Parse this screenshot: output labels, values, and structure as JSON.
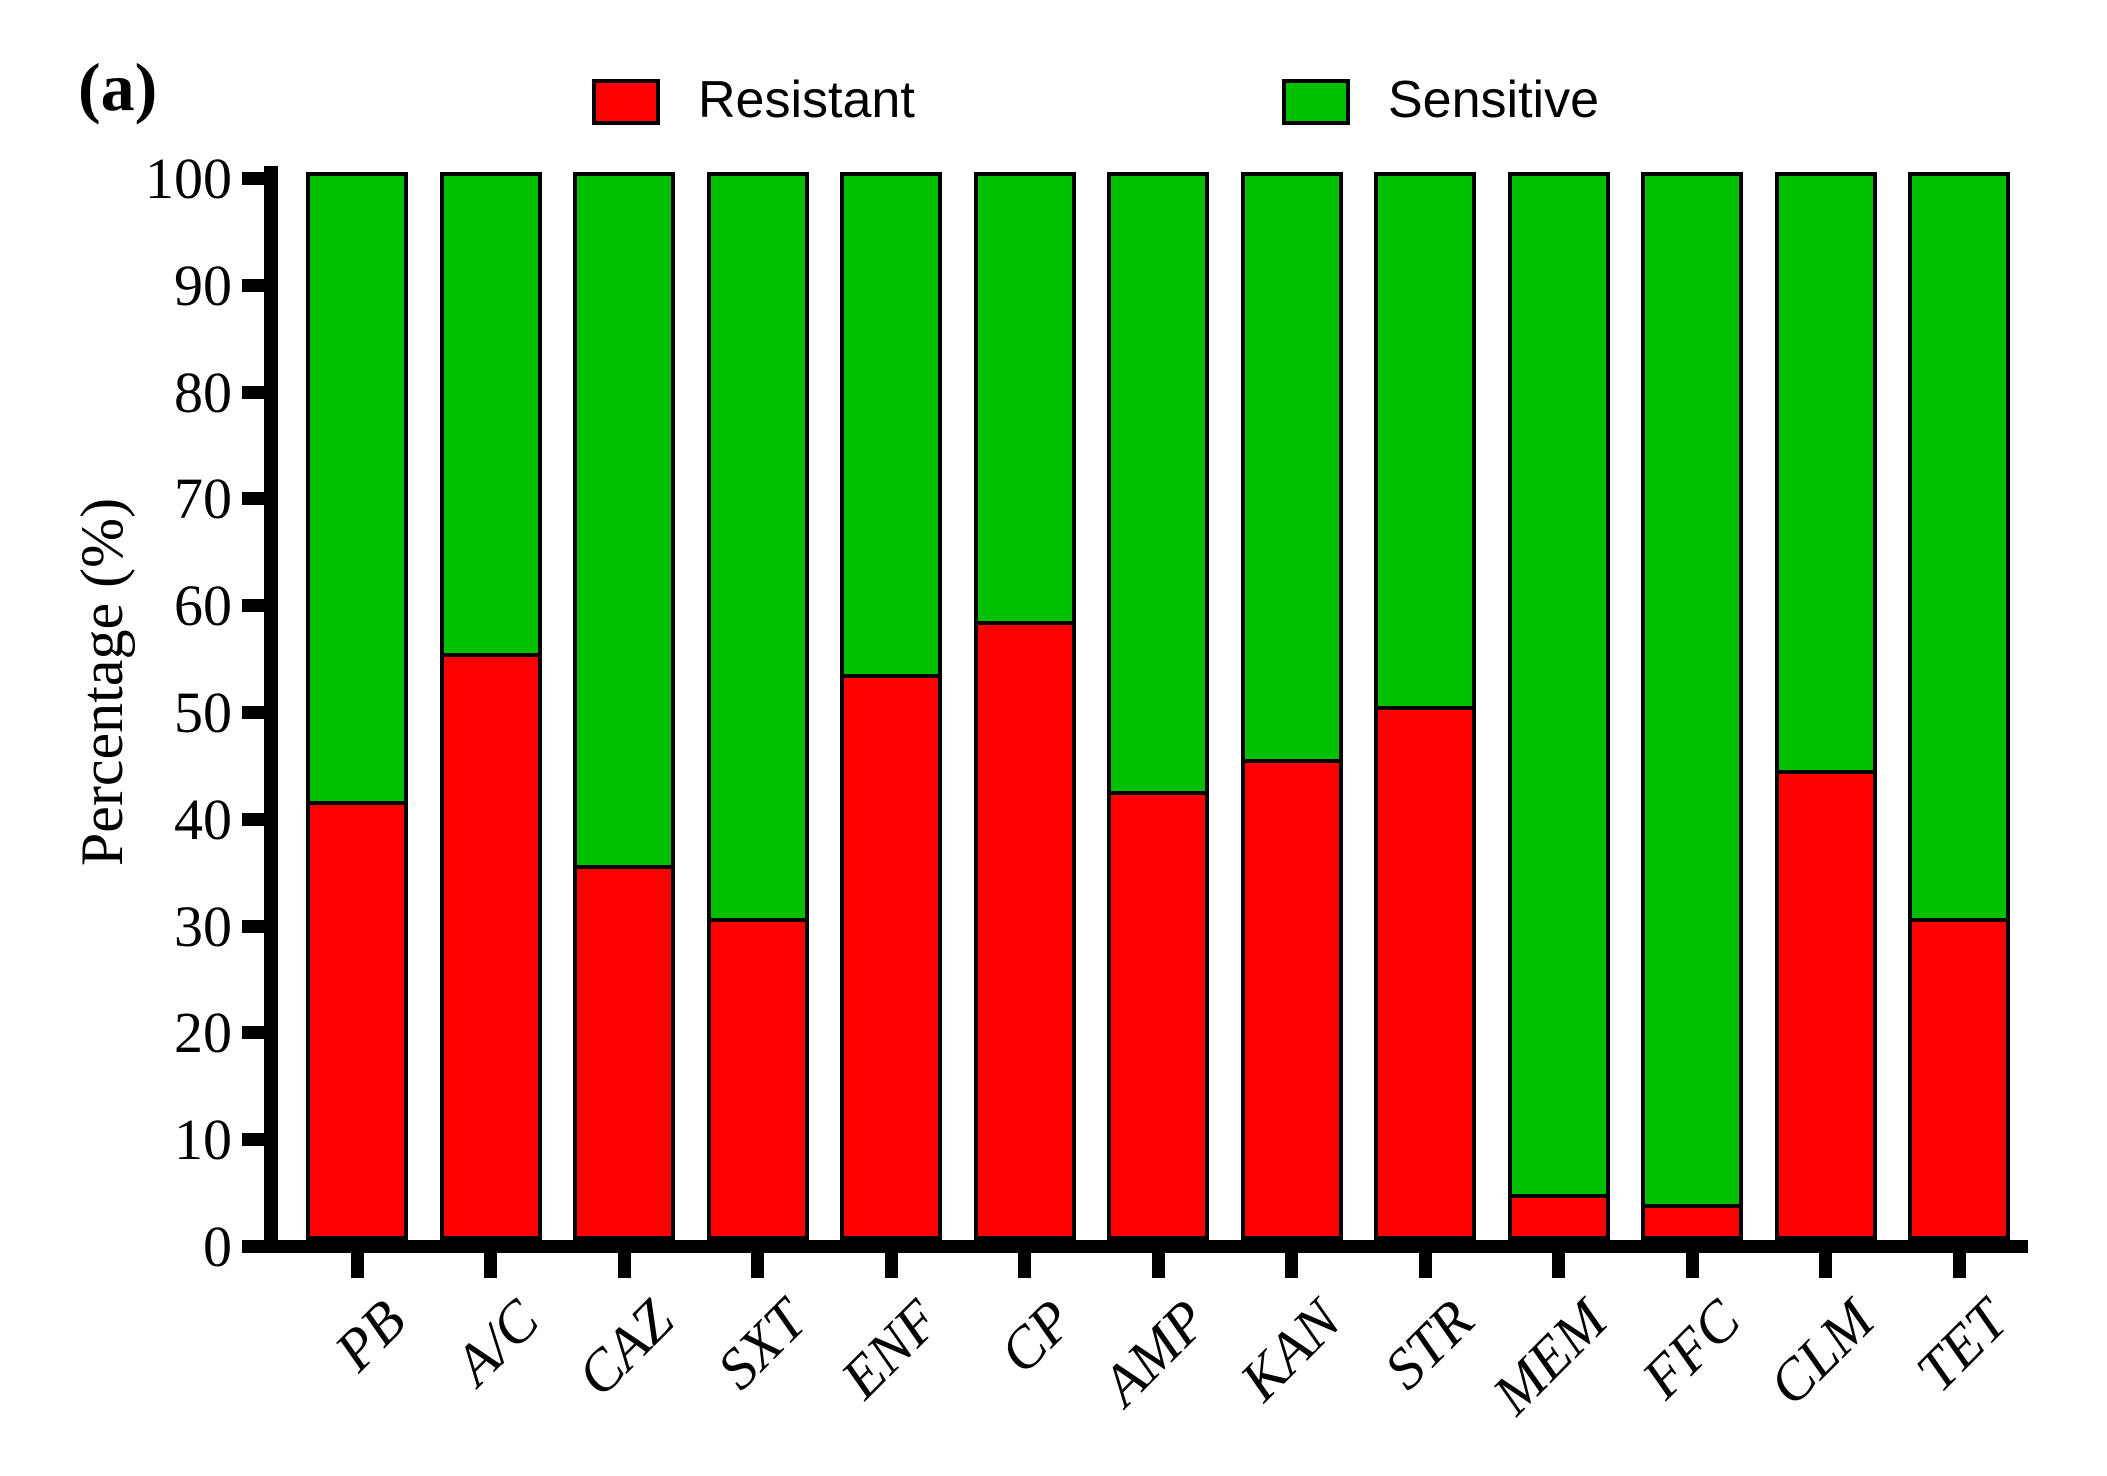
{
  "panel_label": "(a)",
  "legend": [
    {
      "label": "Resistant",
      "color": "#ff0000",
      "swatch": "red-square"
    },
    {
      "label": "Sensitive",
      "color": "#00c000",
      "swatch": "green-square"
    }
  ],
  "chart_data": {
    "type": "bar",
    "variant": "stacked-percentage",
    "categories": [
      "PB",
      "A/C",
      "CAZ",
      "SXT",
      "ENF",
      "CP",
      "AMP",
      "KAN",
      "STR",
      "MEM",
      "FFC",
      "CLM",
      "TET"
    ],
    "series": [
      {
        "name": "Resistant",
        "color": "#ff0000",
        "values": [
          41,
          55,
          35,
          30,
          53,
          58,
          42,
          45,
          50,
          4,
          3,
          44,
          30
        ]
      },
      {
        "name": "Sensitive",
        "color": "#00c000",
        "values": [
          59,
          45,
          65,
          70,
          47,
          42,
          58,
          55,
          50,
          96,
          97,
          56,
          70
        ]
      }
    ],
    "title": "",
    "xlabel": "",
    "ylabel": "Percentage (%)",
    "ylim": [
      0,
      100
    ],
    "yticks": [
      0,
      10,
      20,
      30,
      40,
      50,
      60,
      70,
      80,
      90,
      100
    ],
    "grid": false,
    "legend_position": "top"
  }
}
